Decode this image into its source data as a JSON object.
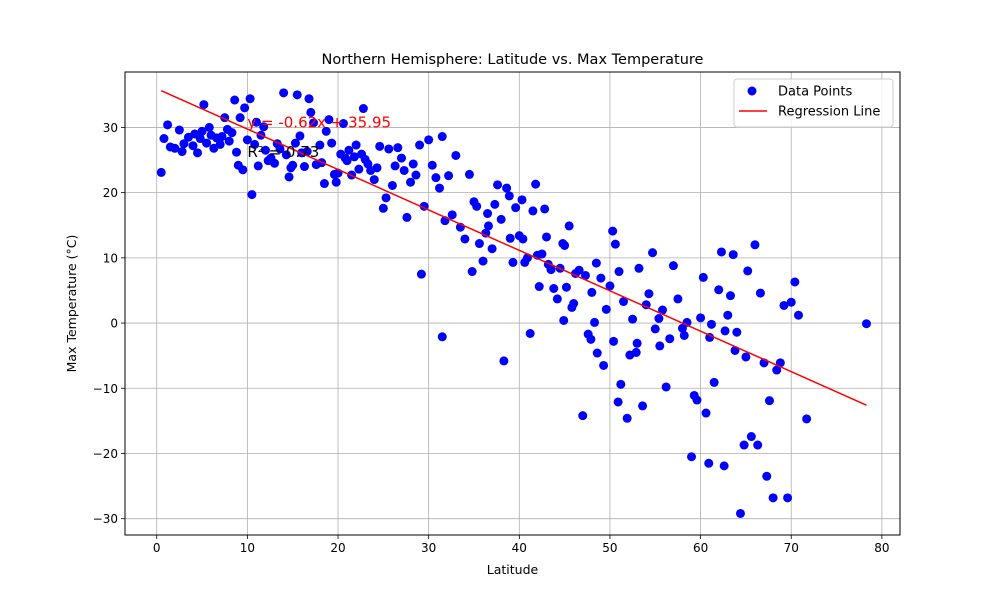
{
  "chart_data": {
    "type": "scatter",
    "title": "Northern Hemisphere: Latitude vs. Max Temperature",
    "xlabel": "Latitude",
    "ylabel": "Max Temperature (°C)",
    "xlim": [
      -3.5,
      82
    ],
    "ylim": [
      -32.5,
      38.5
    ],
    "xticks": [
      0,
      10,
      20,
      30,
      40,
      50,
      60,
      70,
      80
    ],
    "yticks": [
      -30,
      -20,
      -10,
      0,
      10,
      20,
      30
    ],
    "xtick_labels": [
      "0",
      "10",
      "20",
      "30",
      "40",
      "50",
      "60",
      "70",
      "80"
    ],
    "ytick_labels": [
      "−30",
      "−20",
      "−10",
      "0",
      "10",
      "20",
      "30"
    ],
    "grid": true,
    "legend_position": "top-right",
    "legend": [
      "Data Points",
      "Regression Line"
    ],
    "colors": {
      "points": "#0000ff",
      "line": "#ff0000",
      "grid": "#b0b0b0",
      "text": "#000000"
    },
    "regression": {
      "slope": -0.62,
      "intercept": 35.95,
      "x_range": [
        0.5,
        78.3
      ]
    },
    "annotations": [
      {
        "text": "y = -0.62x + 35.95",
        "color": "#ff0000",
        "x": 10,
        "y": 30
      },
      {
        "text": "R² = 0.73",
        "color": "#000000",
        "x": 10,
        "y": 25.5
      }
    ],
    "series": [
      {
        "name": "Data Points",
        "type": "scatter",
        "points": [
          [
            0.5,
            23.1
          ],
          [
            0.8,
            28.3
          ],
          [
            1.2,
            30.4
          ],
          [
            1.5,
            27.0
          ],
          [
            2.0,
            26.8
          ],
          [
            2.5,
            29.6
          ],
          [
            2.8,
            26.3
          ],
          [
            3.0,
            27.5
          ],
          [
            3.5,
            28.5
          ],
          [
            4.0,
            27.2
          ],
          [
            4.2,
            29.0
          ],
          [
            4.5,
            26.1
          ],
          [
            4.8,
            28.3
          ],
          [
            5.0,
            29.4
          ],
          [
            5.2,
            33.5
          ],
          [
            5.5,
            27.6
          ],
          [
            5.8,
            30.0
          ],
          [
            6.0,
            28.8
          ],
          [
            6.3,
            26.8
          ],
          [
            6.6,
            28.4
          ],
          [
            7.0,
            27.4
          ],
          [
            7.2,
            28.6
          ],
          [
            7.5,
            31.5
          ],
          [
            7.8,
            29.7
          ],
          [
            8.0,
            27.9
          ],
          [
            8.3,
            29.2
          ],
          [
            8.6,
            34.2
          ],
          [
            8.8,
            26.2
          ],
          [
            9.0,
            24.2
          ],
          [
            9.2,
            31.5
          ],
          [
            9.5,
            23.5
          ],
          [
            9.7,
            33.0
          ],
          [
            10.0,
            28.1
          ],
          [
            10.3,
            34.4
          ],
          [
            10.5,
            19.7
          ],
          [
            10.8,
            27.4
          ],
          [
            11.0,
            30.8
          ],
          [
            11.2,
            24.1
          ],
          [
            11.5,
            28.8
          ],
          [
            11.8,
            30.1
          ],
          [
            12.0,
            26.5
          ],
          [
            12.3,
            24.9
          ],
          [
            12.6,
            25.3
          ],
          [
            13.0,
            24.5
          ],
          [
            13.3,
            27.5
          ],
          [
            13.6,
            26.7
          ],
          [
            14.0,
            35.3
          ],
          [
            14.3,
            25.8
          ],
          [
            14.6,
            22.4
          ],
          [
            14.8,
            23.8
          ],
          [
            15.0,
            24.2
          ],
          [
            15.3,
            27.6
          ],
          [
            15.5,
            35.0
          ],
          [
            15.8,
            28.7
          ],
          [
            16.0,
            26.1
          ],
          [
            16.3,
            24.0
          ],
          [
            16.6,
            26.3
          ],
          [
            16.8,
            34.4
          ],
          [
            17.0,
            32.3
          ],
          [
            17.3,
            30.7
          ],
          [
            17.6,
            24.3
          ],
          [
            18.0,
            27.3
          ],
          [
            18.2,
            24.6
          ],
          [
            18.5,
            21.4
          ],
          [
            18.7,
            29.4
          ],
          [
            19.0,
            31.2
          ],
          [
            19.3,
            27.6
          ],
          [
            19.6,
            22.8
          ],
          [
            19.8,
            21.6
          ],
          [
            20.0,
            23.0
          ],
          [
            20.3,
            25.9
          ],
          [
            20.6,
            30.6
          ],
          [
            20.8,
            25.3
          ],
          [
            21.0,
            24.9
          ],
          [
            21.2,
            26.5
          ],
          [
            21.5,
            22.7
          ],
          [
            21.8,
            25.5
          ],
          [
            22.0,
            27.3
          ],
          [
            22.3,
            23.6
          ],
          [
            22.6,
            25.9
          ],
          [
            22.8,
            32.9
          ],
          [
            23.0,
            25.1
          ],
          [
            23.3,
            24.4
          ],
          [
            23.6,
            23.4
          ],
          [
            24.0,
            22.0
          ],
          [
            24.3,
            23.8
          ],
          [
            24.6,
            27.1
          ],
          [
            25.0,
            17.6
          ],
          [
            25.3,
            19.2
          ],
          [
            25.6,
            26.7
          ],
          [
            26.0,
            21.1
          ],
          [
            26.3,
            24.1
          ],
          [
            26.6,
            26.9
          ],
          [
            27.0,
            25.3
          ],
          [
            27.3,
            23.4
          ],
          [
            27.6,
            16.2
          ],
          [
            28.0,
            21.6
          ],
          [
            28.3,
            24.4
          ],
          [
            28.6,
            22.7
          ],
          [
            29.0,
            27.3
          ],
          [
            29.2,
            7.5
          ],
          [
            29.5,
            17.9
          ],
          [
            30.0,
            28.1
          ],
          [
            30.4,
            24.2
          ],
          [
            30.8,
            22.3
          ],
          [
            31.2,
            20.7
          ],
          [
            31.5,
            28.6
          ],
          [
            31.5,
            -2.1
          ],
          [
            31.8,
            15.7
          ],
          [
            32.2,
            22.6
          ],
          [
            32.6,
            16.6
          ],
          [
            33.0,
            25.7
          ],
          [
            33.5,
            14.7
          ],
          [
            34.0,
            12.9
          ],
          [
            34.5,
            22.8
          ],
          [
            34.8,
            7.9
          ],
          [
            35.0,
            18.6
          ],
          [
            35.3,
            17.9
          ],
          [
            35.6,
            12.2
          ],
          [
            36.0,
            9.5
          ],
          [
            36.3,
            13.8
          ],
          [
            36.6,
            14.9
          ],
          [
            37.0,
            11.4
          ],
          [
            37.3,
            18.2
          ],
          [
            37.6,
            21.2
          ],
          [
            38.0,
            15.9
          ],
          [
            38.3,
            -5.8
          ],
          [
            38.6,
            20.7
          ],
          [
            39.0,
            13.0
          ],
          [
            39.3,
            9.3
          ],
          [
            39.6,
            17.7
          ],
          [
            40.0,
            13.4
          ],
          [
            40.3,
            18.9
          ],
          [
            40.6,
            9.3
          ],
          [
            40.9,
            10.0
          ],
          [
            41.2,
            -1.6
          ],
          [
            41.5,
            17.2
          ],
          [
            41.8,
            21.3
          ],
          [
            42.2,
            5.6
          ],
          [
            42.5,
            10.6
          ],
          [
            42.8,
            17.5
          ],
          [
            43.2,
            9.0
          ],
          [
            43.5,
            8.2
          ],
          [
            43.8,
            5.3
          ],
          [
            44.2,
            3.7
          ],
          [
            44.5,
            8.4
          ],
          [
            44.8,
            12.2
          ],
          [
            45.2,
            5.5
          ],
          [
            45.5,
            14.9
          ],
          [
            45.8,
            2.4
          ],
          [
            46.2,
            7.6
          ],
          [
            46.6,
            8.1
          ],
          [
            47.0,
            -14.2
          ],
          [
            47.3,
            7.3
          ],
          [
            47.6,
            -1.7
          ],
          [
            48.0,
            4.7
          ],
          [
            48.3,
            0.1
          ],
          [
            48.6,
            -4.6
          ],
          [
            49.0,
            6.9
          ],
          [
            49.3,
            -6.5
          ],
          [
            49.6,
            2.1
          ],
          [
            50.0,
            5.7
          ],
          [
            50.3,
            14.1
          ],
          [
            50.6,
            12.1
          ],
          [
            50.9,
            -12.1
          ],
          [
            51.2,
            -9.4
          ],
          [
            51.5,
            3.3
          ],
          [
            51.9,
            -14.6
          ],
          [
            52.2,
            -4.9
          ],
          [
            52.5,
            0.6
          ],
          [
            52.9,
            -4.5
          ],
          [
            53.2,
            8.4
          ],
          [
            53.6,
            -12.7
          ],
          [
            54.0,
            2.8
          ],
          [
            54.3,
            4.5
          ],
          [
            54.7,
            10.8
          ],
          [
            55.0,
            -0.9
          ],
          [
            55.4,
            0.7
          ],
          [
            55.8,
            2.0
          ],
          [
            56.2,
            -9.8
          ],
          [
            56.6,
            -2.4
          ],
          [
            57.0,
            8.8
          ],
          [
            57.5,
            3.7
          ],
          [
            58.0,
            -0.8
          ],
          [
            58.5,
            0.1
          ],
          [
            59.0,
            -20.5
          ],
          [
            59.3,
            -11.1
          ],
          [
            59.6,
            -11.8
          ],
          [
            60.0,
            0.8
          ],
          [
            60.3,
            7.0
          ],
          [
            60.6,
            -13.8
          ],
          [
            60.9,
            -21.5
          ],
          [
            61.2,
            -0.2
          ],
          [
            61.5,
            -9.1
          ],
          [
            62.0,
            5.1
          ],
          [
            62.3,
            10.9
          ],
          [
            62.6,
            -21.9
          ],
          [
            63.0,
            1.2
          ],
          [
            63.3,
            4.2
          ],
          [
            63.6,
            10.5
          ],
          [
            64.0,
            -1.4
          ],
          [
            64.4,
            -29.2
          ],
          [
            64.8,
            -18.7
          ],
          [
            65.2,
            8.0
          ],
          [
            65.6,
            -17.4
          ],
          [
            66.0,
            12.0
          ],
          [
            66.3,
            -18.7
          ],
          [
            66.6,
            4.6
          ],
          [
            67.0,
            -6.1
          ],
          [
            67.3,
            -23.5
          ],
          [
            67.6,
            -11.9
          ],
          [
            68.0,
            -26.8
          ],
          [
            68.4,
            -7.2
          ],
          [
            68.8,
            -6.1
          ],
          [
            69.2,
            2.7
          ],
          [
            69.6,
            -26.8
          ],
          [
            70.0,
            3.2
          ],
          [
            70.4,
            6.3
          ],
          [
            70.8,
            1.2
          ],
          [
            71.7,
            -14.7
          ],
          [
            78.3,
            -0.1
          ],
          [
            44.9,
            0.4
          ],
          [
            46.0,
            3.0
          ],
          [
            47.9,
            -2.5
          ],
          [
            50.4,
            -2.8
          ],
          [
            53.0,
            -3.1
          ],
          [
            55.5,
            -3.5
          ],
          [
            58.2,
            -1.9
          ],
          [
            61.0,
            -2.2
          ],
          [
            63.8,
            -4.2
          ],
          [
            65.0,
            -5.2
          ],
          [
            62.7,
            -1.2
          ],
          [
            48.5,
            9.2
          ],
          [
            51.0,
            7.9
          ],
          [
            36.5,
            16.8
          ],
          [
            38.9,
            19.5
          ],
          [
            40.4,
            12.9
          ],
          [
            42.0,
            10.4
          ],
          [
            43.0,
            13.2
          ],
          [
            45.0,
            11.9
          ]
        ]
      },
      {
        "name": "Regression Line",
        "type": "line"
      }
    ]
  }
}
